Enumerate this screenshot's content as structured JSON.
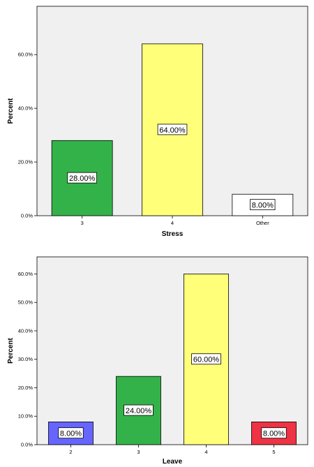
{
  "chart_data": [
    {
      "type": "bar",
      "xlabel": "Stress",
      "ylabel": "Percent",
      "categories": [
        "3",
        "4",
        "Other"
      ],
      "values": [
        28.0,
        64.0,
        8.0
      ],
      "data_labels": [
        "28.00%",
        "64.00%",
        "8.00%"
      ],
      "colors": [
        "#33b24a",
        "#ffff7a",
        "#ffffff"
      ],
      "yticks": [
        "0.0%",
        "20.0%",
        "40.0%",
        "60.0%"
      ],
      "ytick_values": [
        0,
        20,
        40,
        60
      ],
      "ylim": [
        0,
        78
      ],
      "plot_background": "#f0f0f0",
      "grid": false,
      "legend": "none"
    },
    {
      "type": "bar",
      "xlabel": "Leave",
      "ylabel": "Percent",
      "categories": [
        "2",
        "3",
        "4",
        "5"
      ],
      "values": [
        8.0,
        24.0,
        60.0,
        8.0
      ],
      "data_labels": [
        "8.00%",
        "24.00%",
        "60.00%",
        "8.00%"
      ],
      "colors": [
        "#6666ff",
        "#33b24a",
        "#ffff7a",
        "#ee3344"
      ],
      "yticks": [
        "0.0%",
        "10.0%",
        "20.0%",
        "30.0%",
        "40.0%",
        "50.0%",
        "60.0%"
      ],
      "ytick_values": [
        0,
        10,
        20,
        30,
        40,
        50,
        60
      ],
      "ylim": [
        0,
        66
      ],
      "plot_background": "#f0f0f0",
      "grid": false,
      "legend": "none"
    }
  ]
}
